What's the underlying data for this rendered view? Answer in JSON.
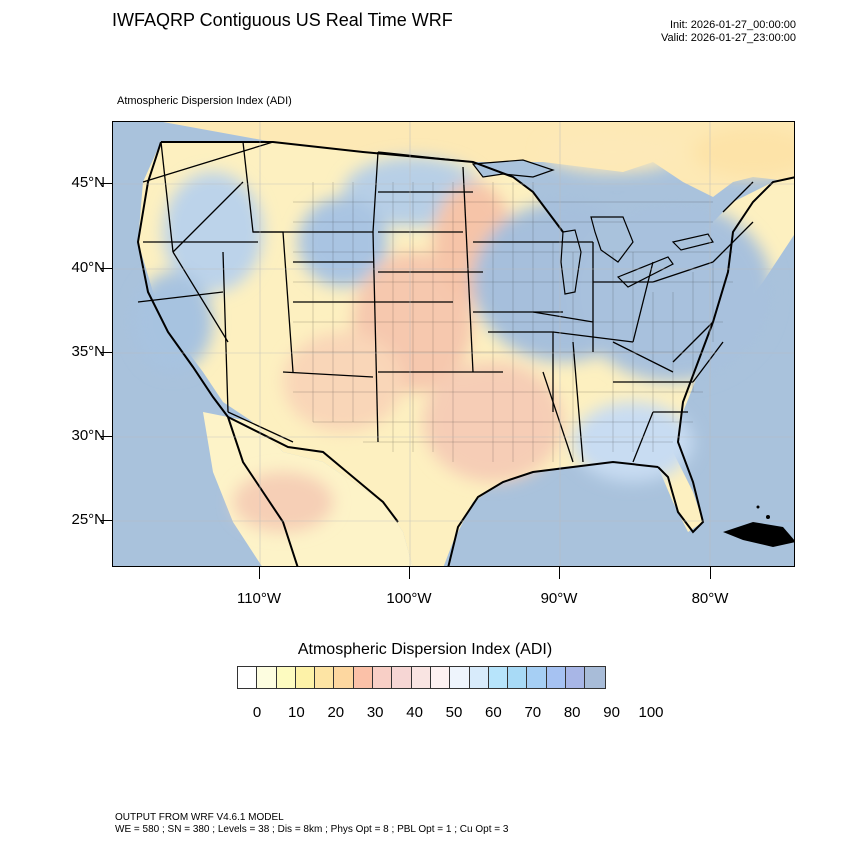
{
  "header": {
    "title": "IWFAQRP Contiguous US Real Time WRF",
    "init": "Init: 2026-01-27_00:00:00",
    "valid": "Valid: 2026-01-27_23:00:00",
    "subtitle": "Atmospheric Dispersion Index   (ADI)"
  },
  "map": {
    "lat_labels": [
      "45°N",
      "40°N",
      "35°N",
      "30°N",
      "25°N"
    ],
    "lon_labels": [
      "110°W",
      "100°W",
      "90°W",
      "80°W"
    ],
    "colors": {
      "ocean": "#a9c2dc",
      "land_low": "#fdf3c0",
      "land_mid": "#f7c7a8",
      "land_high": "#b7cfe6",
      "borders": "#000000"
    }
  },
  "legend": {
    "title": "Atmospheric Dispersion Index  (ADI)",
    "labels": [
      "0",
      "10",
      "20",
      "30",
      "40",
      "50",
      "60",
      "70",
      "80",
      "90",
      "100"
    ],
    "colors": [
      "#ffffff",
      "#fdfde0",
      "#fdfbc0",
      "#fdf2a8",
      "#fde4a4",
      "#fdd7a0",
      "#fbc1a8",
      "#f8cfc6",
      "#f6d6d4",
      "#f9e4e2",
      "#fdf2f2",
      "#eef4fc",
      "#d8ebfb",
      "#b7e4fb",
      "#a8daf6",
      "#a6cff4",
      "#a6c2f2",
      "#a8b6e6",
      "#a8bcd8"
    ]
  },
  "footer": {
    "line1": "OUTPUT FROM WRF V4.6.1 MODEL",
    "line2": "WE = 580 ; SN = 380 ; Levels = 38 ; Dis = 8km ; Phys Opt = 8 ; PBL Opt = 1 ; Cu Opt = 3"
  }
}
